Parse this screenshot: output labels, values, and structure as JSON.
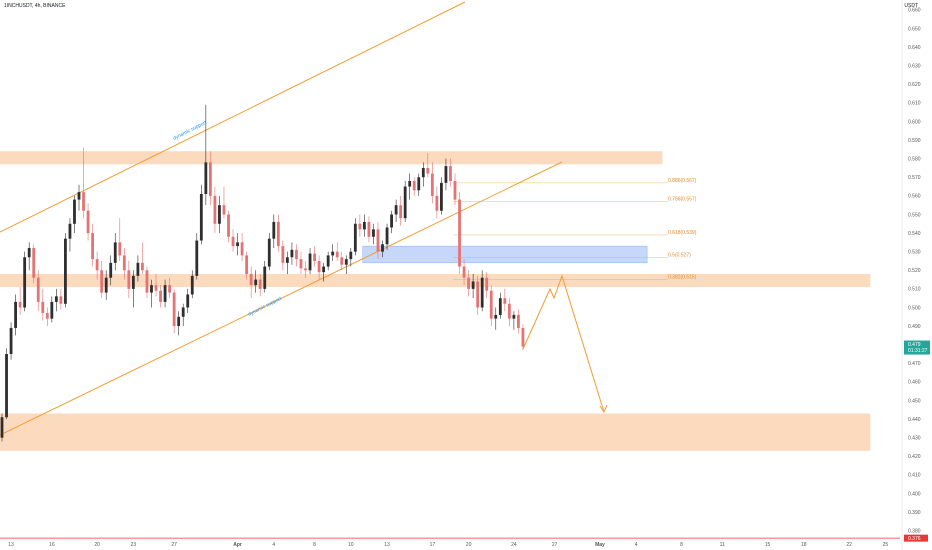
{
  "header": {
    "symbol": "1INCHUSDT, 4h, BINANCE",
    "currency": "USDT"
  },
  "chart_data": {
    "type": "candlestick",
    "ylim": [
      0.375,
      0.661
    ],
    "y_ticks": [
      "0.660",
      "0.650",
      "0.640",
      "0.630",
      "0.620",
      "0.610",
      "0.600",
      "0.590",
      "0.580",
      "0.570",
      "0.560",
      "0.550",
      "0.540",
      "0.530",
      "0.520",
      "0.510",
      "0.500",
      "0.490",
      "0.480",
      "0.470",
      "0.460",
      "0.450",
      "0.440",
      "0.430",
      "0.420",
      "0.410",
      "0.400",
      "0.390",
      "0.380"
    ],
    "x_ticks": [
      "13",
      "16",
      "20",
      "23",
      "27",
      "Apr",
      "4",
      "8",
      "10",
      "13",
      "17",
      "20",
      "24",
      "27",
      "May",
      "4",
      "8",
      "11",
      "15",
      "18",
      "22",
      "25"
    ],
    "x_tick_pos": [
      2,
      11,
      21,
      29,
      38,
      52,
      60,
      69,
      77,
      85,
      95,
      103,
      113,
      122,
      132,
      140,
      150,
      159,
      169,
      177,
      187,
      195
    ],
    "last_price": {
      "value": "0.479",
      "countdown": "01:31:27"
    },
    "bottom_badge": "0.376",
    "candles": [
      [
        0,
        0.43,
        0.443,
        0.428,
        0.441
      ],
      [
        1,
        0.441,
        0.478,
        0.44,
        0.475
      ],
      [
        2,
        0.475,
        0.492,
        0.472,
        0.489
      ],
      [
        3,
        0.489,
        0.507,
        0.485,
        0.503
      ],
      [
        4,
        0.503,
        0.511,
        0.496,
        0.5
      ],
      [
        5,
        0.5,
        0.53,
        0.498,
        0.527
      ],
      [
        6,
        0.527,
        0.535,
        0.52,
        0.532
      ],
      [
        7,
        0.532,
        0.534,
        0.513,
        0.516
      ],
      [
        8,
        0.516,
        0.52,
        0.498,
        0.503
      ],
      [
        9,
        0.503,
        0.51,
        0.493,
        0.497
      ],
      [
        10,
        0.497,
        0.5,
        0.49,
        0.494
      ],
      [
        11,
        0.494,
        0.506,
        0.492,
        0.503
      ],
      [
        12,
        0.503,
        0.51,
        0.498,
        0.506
      ],
      [
        13,
        0.506,
        0.51,
        0.499,
        0.502
      ],
      [
        14,
        0.502,
        0.54,
        0.5,
        0.537
      ],
      [
        15,
        0.537,
        0.548,
        0.53,
        0.545
      ],
      [
        16,
        0.545,
        0.56,
        0.54,
        0.558
      ],
      [
        17,
        0.558,
        0.566,
        0.552,
        0.562
      ],
      [
        18,
        0.562,
        0.586,
        0.548,
        0.552
      ],
      [
        19,
        0.552,
        0.556,
        0.536,
        0.54
      ],
      [
        20,
        0.54,
        0.545,
        0.522,
        0.526
      ],
      [
        21,
        0.526,
        0.53,
        0.515,
        0.52
      ],
      [
        22,
        0.52,
        0.525,
        0.505,
        0.508
      ],
      [
        23,
        0.508,
        0.52,
        0.504,
        0.516
      ],
      [
        24,
        0.516,
        0.528,
        0.512,
        0.524
      ],
      [
        25,
        0.524,
        0.54,
        0.52,
        0.535
      ],
      [
        26,
        0.535,
        0.548,
        0.525,
        0.528
      ],
      [
        27,
        0.528,
        0.532,
        0.515,
        0.52
      ],
      [
        28,
        0.52,
        0.525,
        0.505,
        0.51
      ],
      [
        29,
        0.51,
        0.52,
        0.5,
        0.517
      ],
      [
        30,
        0.517,
        0.528,
        0.514,
        0.524
      ],
      [
        31,
        0.524,
        0.535,
        0.518,
        0.52
      ],
      [
        32,
        0.52,
        0.522,
        0.505,
        0.508
      ],
      [
        33,
        0.508,
        0.515,
        0.5,
        0.512
      ],
      [
        34,
        0.512,
        0.518,
        0.506,
        0.509
      ],
      [
        35,
        0.509,
        0.512,
        0.5,
        0.503
      ],
      [
        36,
        0.503,
        0.515,
        0.5,
        0.512
      ],
      [
        37,
        0.512,
        0.516,
        0.505,
        0.508
      ],
      [
        38,
        0.508,
        0.51,
        0.486,
        0.49
      ],
      [
        39,
        0.49,
        0.498,
        0.485,
        0.495
      ],
      [
        40,
        0.495,
        0.502,
        0.49,
        0.5
      ],
      [
        41,
        0.5,
        0.51,
        0.497,
        0.507
      ],
      [
        42,
        0.507,
        0.52,
        0.505,
        0.517
      ],
      [
        43,
        0.517,
        0.54,
        0.515,
        0.536
      ],
      [
        44,
        0.536,
        0.566,
        0.534,
        0.561
      ],
      [
        45,
        0.561,
        0.609,
        0.555,
        0.578
      ],
      [
        46,
        0.578,
        0.584,
        0.555,
        0.56
      ],
      [
        47,
        0.56,
        0.565,
        0.54,
        0.545
      ],
      [
        48,
        0.545,
        0.56,
        0.54,
        0.555
      ],
      [
        49,
        0.555,
        0.565,
        0.548,
        0.55
      ],
      [
        50,
        0.55,
        0.552,
        0.535,
        0.538
      ],
      [
        51,
        0.538,
        0.542,
        0.53,
        0.533
      ],
      [
        52,
        0.533,
        0.54,
        0.528,
        0.535
      ],
      [
        53,
        0.535,
        0.54,
        0.525,
        0.528
      ],
      [
        54,
        0.528,
        0.53,
        0.515,
        0.518
      ],
      [
        55,
        0.518,
        0.522,
        0.505,
        0.512
      ],
      [
        56,
        0.512,
        0.52,
        0.508,
        0.515
      ],
      [
        57,
        0.515,
        0.518,
        0.506,
        0.51
      ],
      [
        58,
        0.51,
        0.525,
        0.508,
        0.522
      ],
      [
        59,
        0.522,
        0.54,
        0.52,
        0.537
      ],
      [
        60,
        0.537,
        0.55,
        0.532,
        0.546
      ],
      [
        61,
        0.546,
        0.55,
        0.53,
        0.533
      ],
      [
        62,
        0.533,
        0.536,
        0.52,
        0.524
      ],
      [
        63,
        0.524,
        0.53,
        0.518,
        0.527
      ],
      [
        64,
        0.527,
        0.535,
        0.523,
        0.531
      ],
      [
        65,
        0.531,
        0.534,
        0.522,
        0.526
      ],
      [
        66,
        0.526,
        0.53,
        0.518,
        0.521
      ],
      [
        67,
        0.521,
        0.525,
        0.516,
        0.52
      ],
      [
        68,
        0.52,
        0.532,
        0.518,
        0.529
      ],
      [
        69,
        0.529,
        0.533,
        0.522,
        0.525
      ],
      [
        70,
        0.525,
        0.528,
        0.515,
        0.519
      ],
      [
        71,
        0.519,
        0.524,
        0.514,
        0.522
      ],
      [
        72,
        0.522,
        0.53,
        0.52,
        0.528
      ],
      [
        73,
        0.528,
        0.534,
        0.525,
        0.53
      ],
      [
        74,
        0.53,
        0.535,
        0.525,
        0.527
      ],
      [
        75,
        0.527,
        0.53,
        0.52,
        0.523
      ],
      [
        76,
        0.523,
        0.528,
        0.518,
        0.526
      ],
      [
        77,
        0.526,
        0.532,
        0.522,
        0.53
      ],
      [
        78,
        0.53,
        0.548,
        0.528,
        0.545
      ],
      [
        79,
        0.545,
        0.55,
        0.538,
        0.542
      ],
      [
        80,
        0.542,
        0.55,
        0.538,
        0.546
      ],
      [
        81,
        0.546,
        0.549,
        0.535,
        0.538
      ],
      [
        82,
        0.538,
        0.545,
        0.534,
        0.542
      ],
      [
        83,
        0.542,
        0.546,
        0.526,
        0.53
      ],
      [
        84,
        0.53,
        0.536,
        0.527,
        0.534
      ],
      [
        85,
        0.534,
        0.545,
        0.531,
        0.543
      ],
      [
        86,
        0.543,
        0.552,
        0.54,
        0.55
      ],
      [
        87,
        0.55,
        0.558,
        0.546,
        0.555
      ],
      [
        88,
        0.555,
        0.56,
        0.544,
        0.548
      ],
      [
        89,
        0.548,
        0.568,
        0.546,
        0.565
      ],
      [
        90,
        0.565,
        0.572,
        0.558,
        0.568
      ],
      [
        91,
        0.568,
        0.57,
        0.56,
        0.563
      ],
      [
        92,
        0.563,
        0.572,
        0.56,
        0.57
      ],
      [
        93,
        0.57,
        0.578,
        0.565,
        0.575
      ],
      [
        94,
        0.575,
        0.583,
        0.57,
        0.572
      ],
      [
        95,
        0.572,
        0.578,
        0.556,
        0.56
      ],
      [
        96,
        0.56,
        0.565,
        0.548,
        0.552
      ],
      [
        97,
        0.552,
        0.57,
        0.55,
        0.567
      ],
      [
        98,
        0.567,
        0.58,
        0.563,
        0.576
      ],
      [
        99,
        0.576,
        0.58,
        0.565,
        0.568
      ],
      [
        100,
        0.568,
        0.572,
        0.555,
        0.558
      ],
      [
        101,
        0.558,
        0.562,
        0.518,
        0.522
      ],
      [
        102,
        0.522,
        0.526,
        0.512,
        0.516
      ],
      [
        103,
        0.516,
        0.52,
        0.506,
        0.51
      ],
      [
        104,
        0.51,
        0.518,
        0.505,
        0.514
      ],
      [
        105,
        0.514,
        0.517,
        0.496,
        0.5
      ],
      [
        106,
        0.5,
        0.52,
        0.498,
        0.516
      ],
      [
        107,
        0.516,
        0.519,
        0.505,
        0.509
      ],
      [
        108,
        0.509,
        0.512,
        0.49,
        0.494
      ],
      [
        109,
        0.494,
        0.5,
        0.488,
        0.496
      ],
      [
        110,
        0.496,
        0.508,
        0.494,
        0.505
      ],
      [
        111,
        0.505,
        0.51,
        0.498,
        0.502
      ],
      [
        112,
        0.502,
        0.505,
        0.49,
        0.494
      ],
      [
        113,
        0.494,
        0.498,
        0.488,
        0.496
      ],
      [
        114,
        0.496,
        0.499,
        0.486,
        0.489
      ],
      [
        115,
        0.489,
        0.491,
        0.477,
        0.479
      ]
    ],
    "zones": [
      {
        "type": "resistance",
        "from": 0.584,
        "to": 0.577,
        "x_end": 0.736,
        "color": "#f7a35c"
      },
      {
        "type": "support",
        "from": 0.518,
        "to": 0.511,
        "x_end": 0.967,
        "color": "#f7a35c"
      },
      {
        "type": "support",
        "from": 0.443,
        "to": 0.423,
        "x_end": 0.967,
        "color": "#f7a35c"
      },
      {
        "type": "demand",
        "from": 0.533,
        "to": 0.524,
        "x_start": 0.403,
        "x_end": 0.719,
        "color": "#5b8def"
      }
    ],
    "fib_levels": [
      {
        "label": "0.886(0.567)",
        "value": 0.567
      },
      {
        "label": "0.786(0.557)",
        "value": 0.557
      },
      {
        "label": "0.618(0.539)",
        "value": 0.539
      },
      {
        "label": "0.5(0.527)",
        "value": 0.527
      },
      {
        "label": "0.382(0.515)",
        "value": 0.515
      }
    ],
    "annotations": [
      {
        "text": "dynamic support",
        "color": "#2196f3"
      },
      {
        "text": "dynamic support",
        "color": "#2196f3"
      }
    ],
    "colors": {
      "up": "#2e2e2e",
      "down": "#e57373",
      "trend": "#f39c33",
      "badge": "#26a69a",
      "badge_bottom": "#e53935"
    }
  }
}
